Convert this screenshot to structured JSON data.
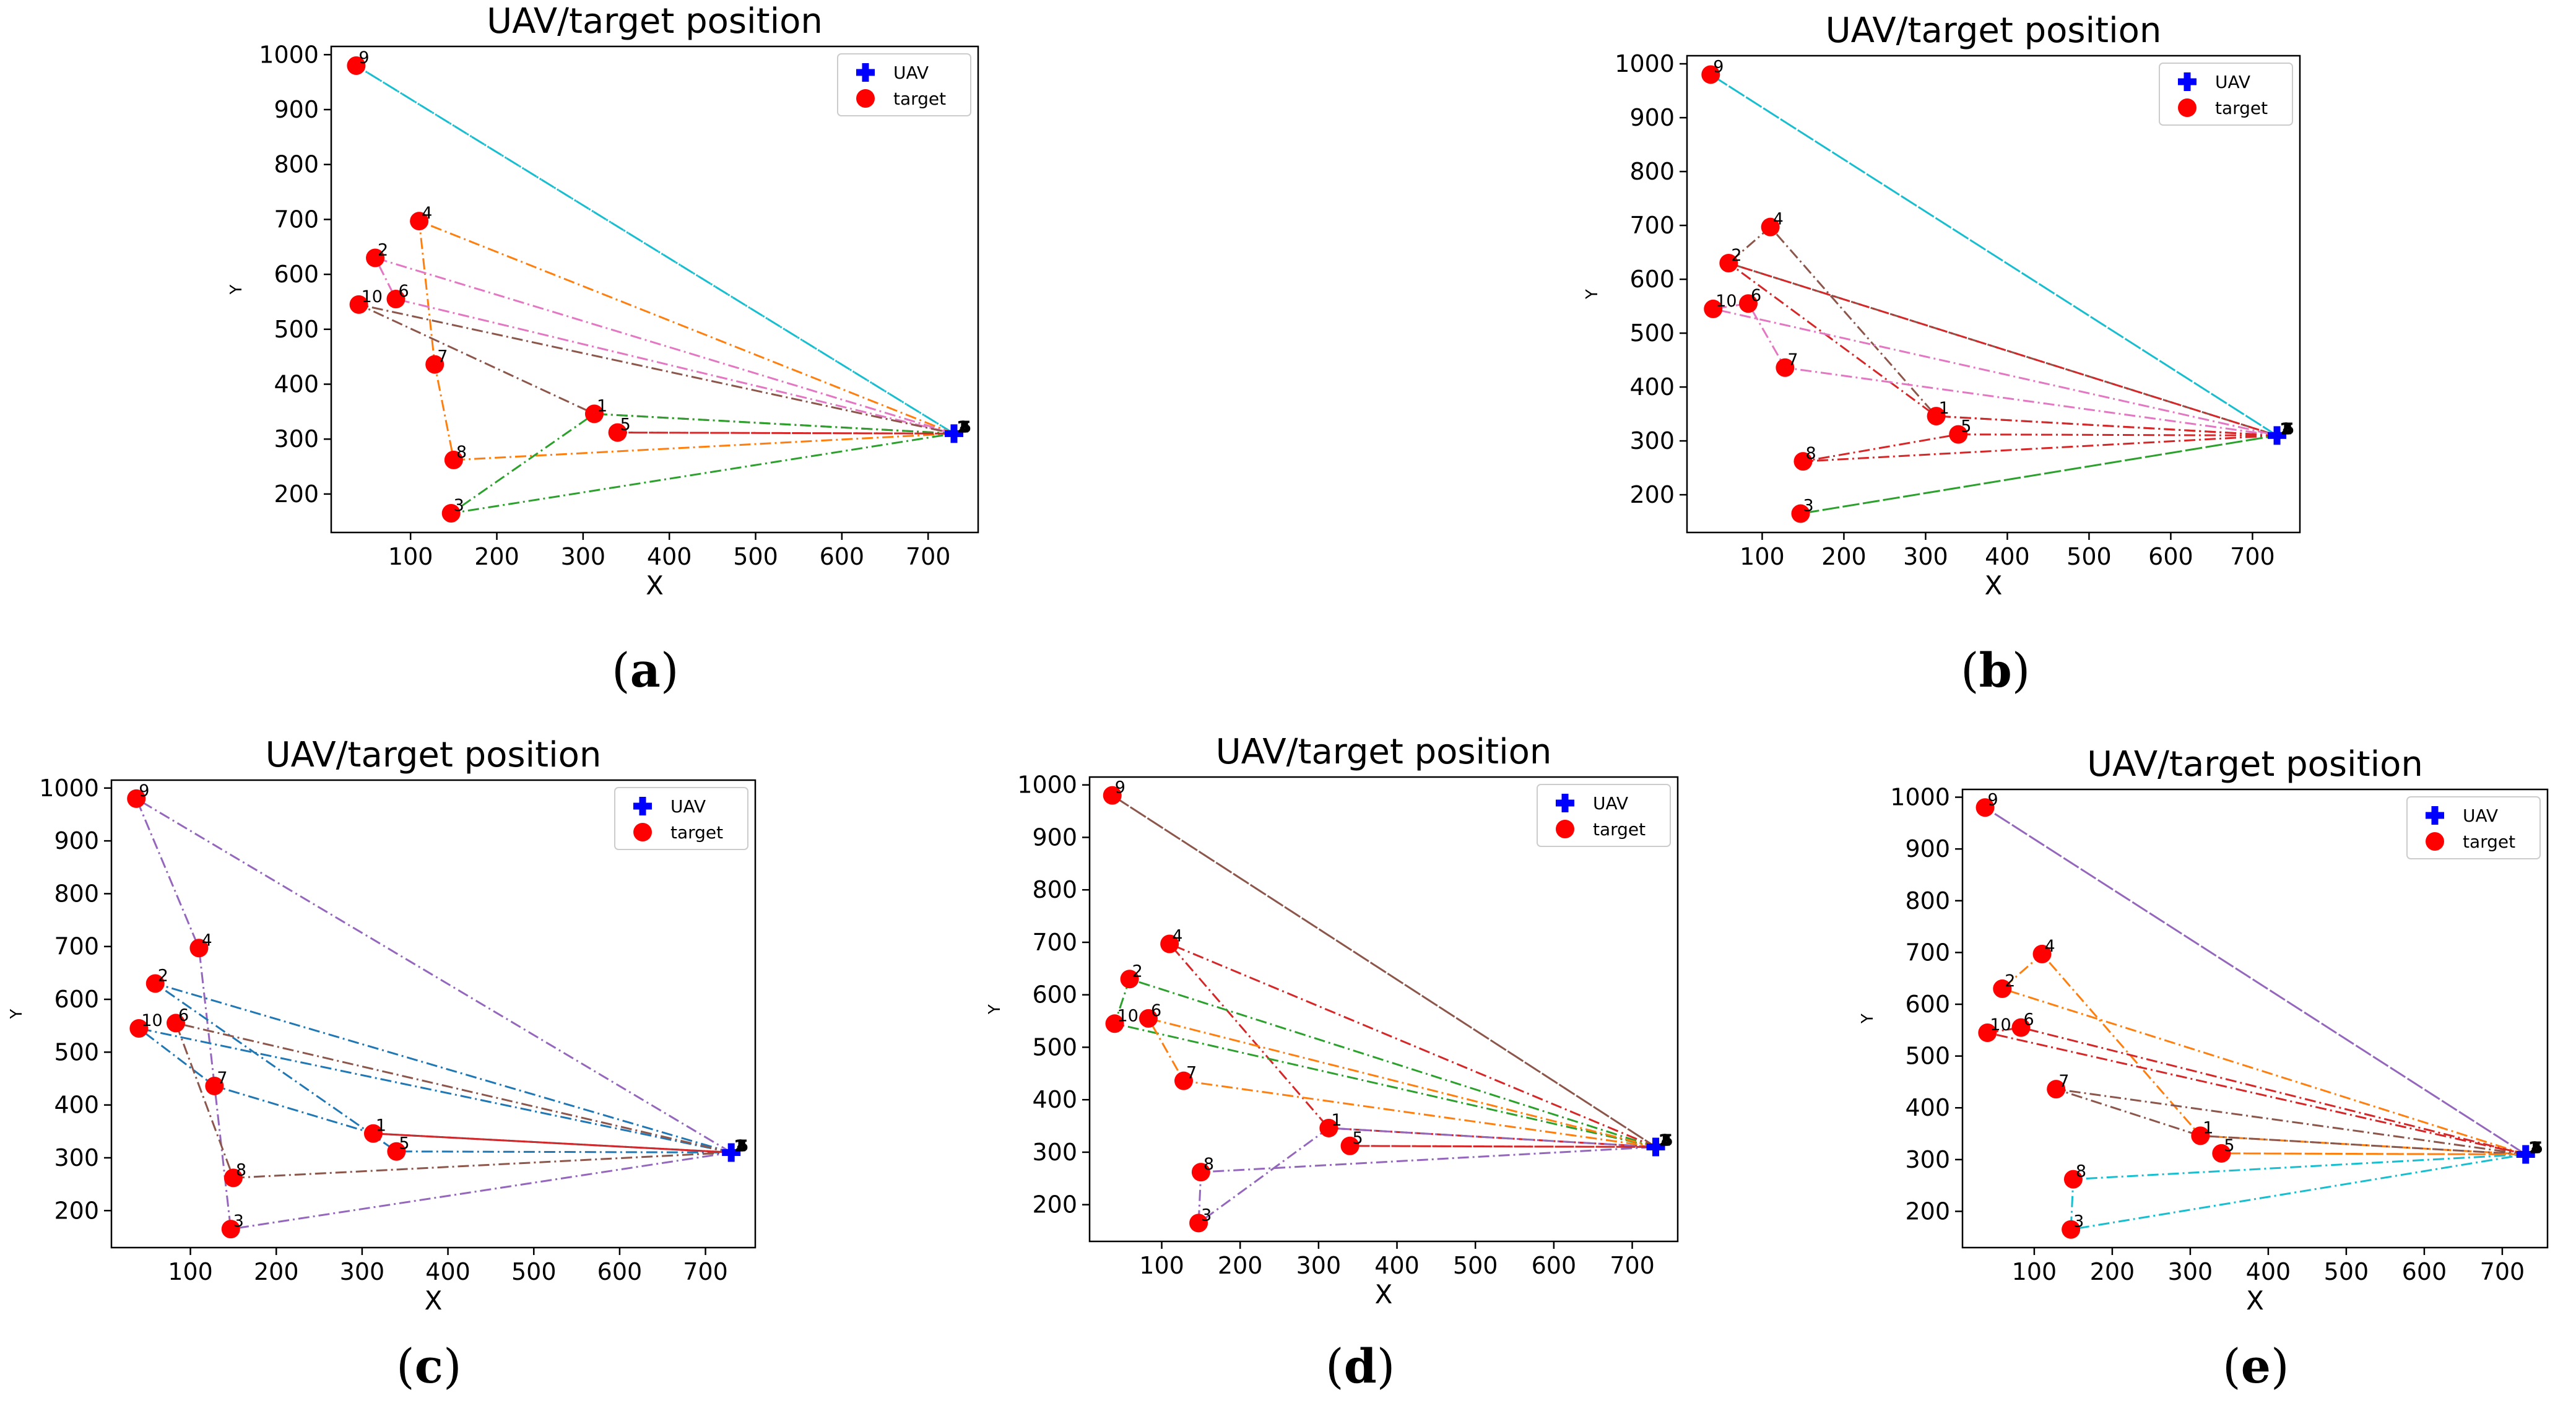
{
  "figure": {
    "colors": {
      "uav": "#0000ff",
      "target": "#ff0000",
      "tab": [
        "#1f77b4",
        "#ff7f0e",
        "#2ca02c",
        "#d62728",
        "#9467bd",
        "#8c564b",
        "#e377c2",
        "#7f7f7f",
        "#bcbd22",
        "#17becf"
      ]
    }
  },
  "chart_data": [
    {
      "panel": "a",
      "type": "scatter",
      "title": "UAV/target position",
      "xlabel": "X",
      "ylabel": "Y",
      "xlim": [
        8,
        758
      ],
      "ylim": [
        130,
        1015
      ],
      "xticks": [
        100,
        200,
        300,
        400,
        500,
        600,
        700
      ],
      "yticks": [
        200,
        300,
        400,
        500,
        600,
        700,
        800,
        900,
        1000
      ],
      "legend": {
        "position": "top-right",
        "entries": [
          "UAV",
          "target"
        ]
      },
      "uav": {
        "x": 730,
        "y": 310,
        "labels": [
          "1",
          "2",
          "3",
          "4",
          "5"
        ]
      },
      "targets": [
        {
          "id": "1",
          "x": 313,
          "y": 346
        },
        {
          "id": "2",
          "x": 59,
          "y": 630
        },
        {
          "id": "3",
          "x": 147,
          "y": 165
        },
        {
          "id": "4",
          "x": 110,
          "y": 697
        },
        {
          "id": "5",
          "x": 340,
          "y": 312
        },
        {
          "id": "6",
          "x": 83,
          "y": 555
        },
        {
          "id": "7",
          "x": 128,
          "y": 436
        },
        {
          "id": "8",
          "x": 150,
          "y": 262
        },
        {
          "id": "9",
          "x": 37,
          "y": 980
        },
        {
          "id": "10",
          "x": 40,
          "y": 545
        }
      ],
      "routes": [
        {
          "color": "#17becf",
          "path": [
            "UAV",
            "9",
            "UAV"
          ]
        },
        {
          "color": "#ff7f0e",
          "path": [
            "UAV",
            "4",
            "7",
            "8",
            "UAV"
          ]
        },
        {
          "color": "#e377c2",
          "path": [
            "UAV",
            "2",
            "6",
            "UAV"
          ]
        },
        {
          "color": "#8c564b",
          "path": [
            "UAV",
            "1",
            "10",
            "UAV"
          ]
        },
        {
          "color": "#2ca02c",
          "path": [
            "UAV",
            "1",
            "3",
            "UAV"
          ]
        },
        {
          "color": "#d62728",
          "path": [
            "UAV",
            "5",
            "UAV"
          ]
        }
      ]
    },
    {
      "panel": "b",
      "type": "scatter",
      "title": "UAV/target position",
      "xlabel": "X",
      "ylabel": "Y",
      "xlim": [
        8,
        758
      ],
      "ylim": [
        130,
        1015
      ],
      "xticks": [
        100,
        200,
        300,
        400,
        500,
        600,
        700
      ],
      "yticks": [
        200,
        300,
        400,
        500,
        600,
        700,
        800,
        900,
        1000
      ],
      "legend": {
        "position": "top-right",
        "entries": [
          "UAV",
          "target"
        ]
      },
      "uav": {
        "x": 730,
        "y": 310,
        "labels": [
          "1",
          "2",
          "3",
          "4",
          "5"
        ]
      },
      "targets": [
        {
          "id": "1",
          "x": 313,
          "y": 346
        },
        {
          "id": "2",
          "x": 59,
          "y": 630
        },
        {
          "id": "3",
          "x": 147,
          "y": 165
        },
        {
          "id": "4",
          "x": 110,
          "y": 697
        },
        {
          "id": "5",
          "x": 340,
          "y": 312
        },
        {
          "id": "6",
          "x": 83,
          "y": 555
        },
        {
          "id": "7",
          "x": 128,
          "y": 436
        },
        {
          "id": "8",
          "x": 150,
          "y": 262
        },
        {
          "id": "9",
          "x": 37,
          "y": 980
        },
        {
          "id": "10",
          "x": 40,
          "y": 545
        }
      ],
      "routes": [
        {
          "color": "#17becf",
          "path": [
            "UAV",
            "9",
            "UAV"
          ]
        },
        {
          "color": "#8c564b",
          "path": [
            "UAV",
            "1",
            "4",
            "2",
            "UAV"
          ]
        },
        {
          "color": "#d62728",
          "path": [
            "UAV",
            "1",
            "2",
            "UAV"
          ]
        },
        {
          "color": "#e377c2",
          "path": [
            "UAV",
            "7",
            "6",
            "10",
            "UAV"
          ]
        },
        {
          "color": "#d62728",
          "path": [
            "UAV",
            "5",
            "8",
            "UAV"
          ]
        },
        {
          "color": "#2ca02c",
          "path": [
            "UAV",
            "3",
            "UAV"
          ]
        }
      ]
    },
    {
      "panel": "c",
      "type": "scatter",
      "title": "UAV/target position",
      "xlabel": "X",
      "ylabel": "Y",
      "xlim": [
        8,
        758
      ],
      "ylim": [
        130,
        1015
      ],
      "xticks": [
        100,
        200,
        300,
        400,
        500,
        600,
        700
      ],
      "yticks": [
        200,
        300,
        400,
        500,
        600,
        700,
        800,
        900,
        1000
      ],
      "legend": {
        "position": "top-right",
        "entries": [
          "UAV",
          "target"
        ]
      },
      "uav": {
        "x": 730,
        "y": 310,
        "labels": [
          "1",
          "2",
          "3",
          "4",
          "5"
        ]
      },
      "targets": [
        {
          "id": "1",
          "x": 313,
          "y": 346
        },
        {
          "id": "2",
          "x": 59,
          "y": 630
        },
        {
          "id": "3",
          "x": 147,
          "y": 165
        },
        {
          "id": "4",
          "x": 110,
          "y": 697
        },
        {
          "id": "5",
          "x": 340,
          "y": 312
        },
        {
          "id": "6",
          "x": 83,
          "y": 555
        },
        {
          "id": "7",
          "x": 128,
          "y": 436
        },
        {
          "id": "8",
          "x": 150,
          "y": 262
        },
        {
          "id": "9",
          "x": 37,
          "y": 980
        },
        {
          "id": "10",
          "x": 40,
          "y": 545
        }
      ],
      "routes": [
        {
          "color": "#9467bd",
          "path": [
            "UAV",
            "9",
            "4",
            "3",
            "UAV"
          ]
        },
        {
          "color": "#1f77b4",
          "path": [
            "UAV",
            "2",
            "5",
            "UAV"
          ]
        },
        {
          "color": "#1f77b4",
          "path": [
            "UAV",
            "10",
            "7",
            "1",
            "UAV"
          ]
        },
        {
          "color": "#8c564b",
          "path": [
            "UAV",
            "6",
            "8",
            "UAV"
          ]
        },
        {
          "color": "#d62728",
          "path": [
            "UAV",
            "1",
            "UAV"
          ]
        }
      ]
    },
    {
      "panel": "d",
      "type": "scatter",
      "title": "UAV/target position",
      "xlabel": "X",
      "ylabel": "Y",
      "xlim": [
        8,
        758
      ],
      "ylim": [
        130,
        1015
      ],
      "xticks": [
        100,
        200,
        300,
        400,
        500,
        600,
        700
      ],
      "yticks": [
        200,
        300,
        400,
        500,
        600,
        700,
        800,
        900,
        1000
      ],
      "legend": {
        "position": "top-right",
        "entries": [
          "UAV",
          "target"
        ]
      },
      "uav": {
        "x": 730,
        "y": 310,
        "labels": [
          "1",
          "2",
          "3",
          "4",
          "5"
        ]
      },
      "targets": [
        {
          "id": "1",
          "x": 313,
          "y": 346
        },
        {
          "id": "2",
          "x": 59,
          "y": 630
        },
        {
          "id": "3",
          "x": 147,
          "y": 165
        },
        {
          "id": "4",
          "x": 110,
          "y": 697
        },
        {
          "id": "5",
          "x": 340,
          "y": 312
        },
        {
          "id": "6",
          "x": 83,
          "y": 555
        },
        {
          "id": "7",
          "x": 128,
          "y": 436
        },
        {
          "id": "8",
          "x": 150,
          "y": 262
        },
        {
          "id": "9",
          "x": 37,
          "y": 980
        },
        {
          "id": "10",
          "x": 40,
          "y": 545
        }
      ],
      "routes": [
        {
          "color": "#8c564b",
          "path": [
            "UAV",
            "9",
            "UAV"
          ]
        },
        {
          "color": "#d62728",
          "path": [
            "UAV",
            "4",
            "1",
            "UAV"
          ]
        },
        {
          "color": "#2ca02c",
          "path": [
            "UAV",
            "2",
            "10",
            "UAV"
          ]
        },
        {
          "color": "#ff7f0e",
          "path": [
            "UAV",
            "6",
            "7",
            "UAV"
          ]
        },
        {
          "color": "#9467bd",
          "path": [
            "UAV",
            "1",
            "3",
            "8",
            "UAV"
          ]
        },
        {
          "color": "#d62728",
          "path": [
            "UAV",
            "5",
            "UAV"
          ]
        }
      ]
    },
    {
      "panel": "e",
      "type": "scatter",
      "title": "UAV/target position",
      "xlabel": "X",
      "ylabel": "Y",
      "xlim": [
        8,
        758
      ],
      "ylim": [
        130,
        1015
      ],
      "xticks": [
        100,
        200,
        300,
        400,
        500,
        600,
        700
      ],
      "yticks": [
        200,
        300,
        400,
        500,
        600,
        700,
        800,
        900,
        1000
      ],
      "legend": {
        "position": "top-right",
        "entries": [
          "UAV",
          "target"
        ]
      },
      "uav": {
        "x": 730,
        "y": 310,
        "labels": [
          "1",
          "2",
          "3",
          "4",
          "5"
        ]
      },
      "targets": [
        {
          "id": "1",
          "x": 313,
          "y": 346
        },
        {
          "id": "2",
          "x": 59,
          "y": 630
        },
        {
          "id": "3",
          "x": 147,
          "y": 165
        },
        {
          "id": "4",
          "x": 110,
          "y": 697
        },
        {
          "id": "5",
          "x": 340,
          "y": 312
        },
        {
          "id": "6",
          "x": 83,
          "y": 555
        },
        {
          "id": "7",
          "x": 128,
          "y": 436
        },
        {
          "id": "8",
          "x": 150,
          "y": 262
        },
        {
          "id": "9",
          "x": 37,
          "y": 980
        },
        {
          "id": "10",
          "x": 40,
          "y": 545
        }
      ],
      "routes": [
        {
          "color": "#9467bd",
          "path": [
            "UAV",
            "9",
            "UAV"
          ]
        },
        {
          "color": "#ff7f0e",
          "path": [
            "UAV",
            "2",
            "4",
            "1",
            "UAV"
          ]
        },
        {
          "color": "#d62728",
          "path": [
            "UAV",
            "10",
            "6",
            "UAV"
          ]
        },
        {
          "color": "#8c564b",
          "path": [
            "UAV",
            "7",
            "1",
            "UAV"
          ]
        },
        {
          "color": "#17becf",
          "path": [
            "UAV",
            "8",
            "3",
            "UAV"
          ]
        },
        {
          "color": "#ff7f0e",
          "path": [
            "UAV",
            "5",
            "UAV"
          ]
        }
      ]
    }
  ]
}
